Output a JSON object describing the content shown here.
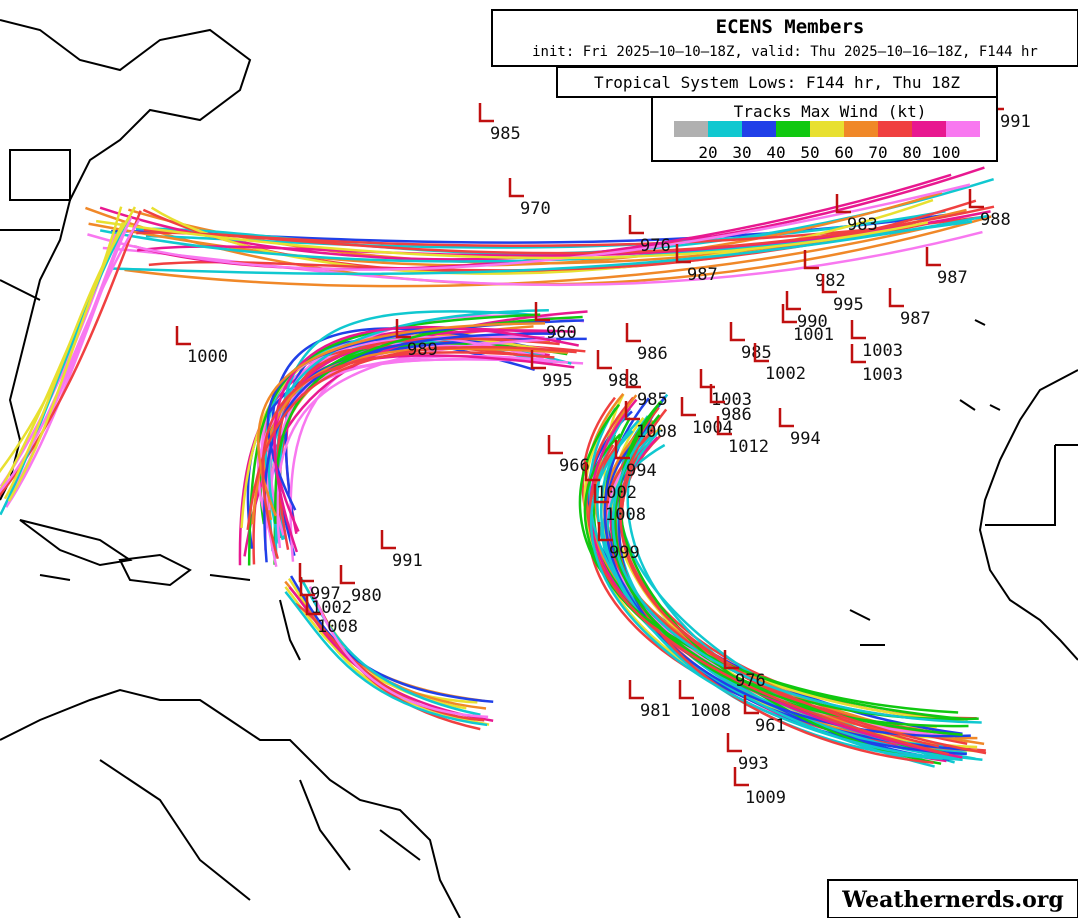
{
  "header": {
    "title": "ECENS Members",
    "subtitle": "init: Fri 2025–10–10–18Z, valid: Thu 2025–10–16–18Z, F144 hr",
    "panel": "Tropical System Lows: F144 hr, Thu 18Z"
  },
  "legend": {
    "title": "Tracks Max Wind (kt)",
    "colors": [
      "#b0b0b0",
      "#10c8d0",
      "#2040e8",
      "#10c810",
      "#e8e030",
      "#f08828",
      "#f04040",
      "#e81890",
      "#f878f0"
    ],
    "labels": [
      20,
      30,
      40,
      50,
      60,
      70,
      80,
      100
    ]
  },
  "lows": [
    985,
    970,
    976,
    987,
    983,
    988,
    982,
    987,
    995,
    987,
    990,
    1001,
    1000,
    989,
    960,
    986,
    985,
    1003,
    1002,
    1003,
    995,
    988,
    985,
    1003,
    986,
    1008,
    1004,
    994,
    1012,
    966,
    994,
    1002,
    1008,
    999,
    991,
    997,
    980,
    1002,
    1008,
    981,
    1009,
    993,
    976,
    1008,
    961,
    991
  ],
  "footer": {
    "watermark": "Weathernerds.org"
  }
}
